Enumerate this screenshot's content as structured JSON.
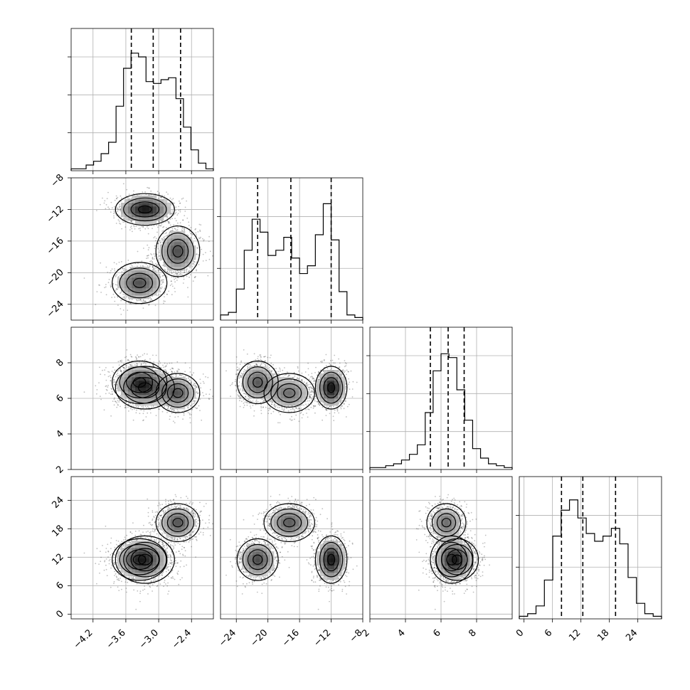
{
  "chart_data": {
    "type": "corner",
    "grid": true,
    "description": "corner plot of 4 parameters: 1D histograms on diagonal with dashed quantile lines, 2D density scatter with contours below diagonal",
    "params": [
      {
        "range": [
          -4.6,
          -2.0
        ],
        "ticks": [
          -4.2,
          -3.6,
          -3.0,
          -2.4
        ],
        "tick_labels": [
          "−4.2",
          "−3.6",
          "−3.0",
          "−2.4"
        ],
        "quantiles": [
          -3.5,
          -3.1,
          -2.6
        ],
        "hist_counts": [
          1,
          1,
          3,
          5,
          9,
          15,
          34,
          54,
          62,
          60,
          47,
          46,
          48,
          49,
          38,
          23,
          11,
          4,
          1
        ]
      },
      {
        "range": [
          -26,
          -8
        ],
        "ticks": [
          -24,
          -20,
          -16,
          -12,
          -8
        ],
        "tick_labels": [
          "−24",
          "−20",
          "−16",
          "−12",
          "−8"
        ],
        "quantiles": [
          -21.3,
          -17.1,
          -12.0
        ],
        "hist_counts": [
          2,
          3,
          12,
          27,
          39,
          34,
          25,
          27,
          32,
          24,
          18,
          21,
          33,
          45,
          31,
          11,
          2,
          1
        ]
      },
      {
        "range": [
          2,
          10
        ],
        "ticks": [
          2,
          4,
          6,
          8
        ],
        "tick_labels": [
          "2",
          "4",
          "6",
          "8"
        ],
        "quantiles": [
          5.4,
          6.4,
          7.3
        ],
        "hist_counts": [
          1,
          1,
          2,
          3,
          5,
          8,
          13,
          30,
          52,
          61,
          59,
          42,
          26,
          11,
          6,
          3,
          2,
          1
        ]
      },
      {
        "range": [
          -1,
          29
        ],
        "ticks": [
          0,
          6,
          12,
          18,
          24
        ],
        "tick_labels": [
          "0",
          "6",
          "12",
          "18",
          "24"
        ],
        "quantiles": [
          7.9,
          12.4,
          19.3
        ],
        "hist_counts": [
          1,
          2,
          5,
          15,
          32,
          42,
          46,
          39,
          33,
          30,
          32,
          35,
          29,
          16,
          6,
          2,
          1
        ]
      }
    ],
    "clusters": [
      {
        "mean": [
          -3.25,
          -12.0,
          6.6,
          11.5
        ],
        "sd": [
          0.27,
          1.0,
          0.6,
          2.5
        ],
        "weight": 0.36
      },
      {
        "mean": [
          -2.65,
          -17.3,
          6.3,
          19.3
        ],
        "sd": [
          0.2,
          1.6,
          0.55,
          2.0
        ],
        "weight": 0.32
      },
      {
        "mean": [
          -3.35,
          -21.3,
          6.9,
          11.5
        ],
        "sd": [
          0.25,
          1.3,
          0.6,
          2.2
        ],
        "weight": 0.32
      }
    ]
  }
}
